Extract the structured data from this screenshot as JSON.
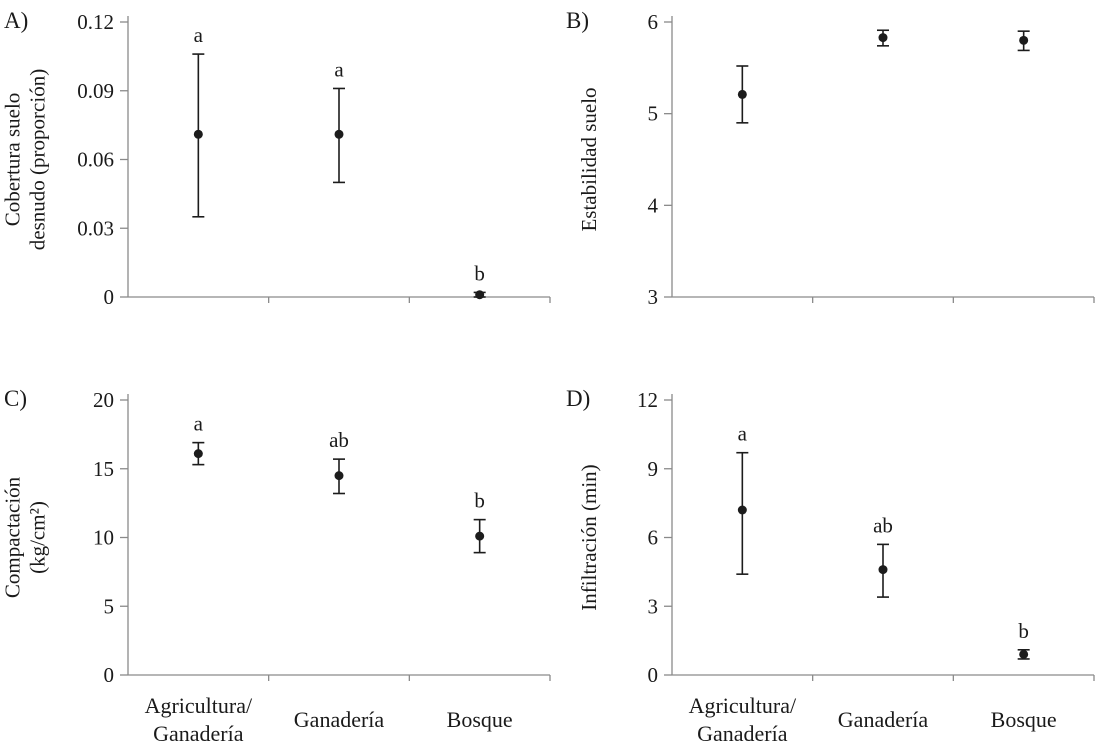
{
  "figure": {
    "background": "#ffffff",
    "point_color": "#1c1c1c",
    "error_bar_color": "#1c1c1c",
    "axis_color": "#8a8a8a",
    "text_color": "#1a1a1a"
  },
  "categories_display": [
    [
      "Agricultura/",
      "Ganadería"
    ],
    [
      "Ganadería"
    ],
    [
      "Bosque"
    ]
  ],
  "chart_data": [
    {
      "type": "scatter",
      "panel_label": "A)",
      "ylabel_lines": [
        "Cobertura suelo",
        "desnudo (proporción)"
      ],
      "ylim": [
        0,
        0.12
      ],
      "yticks": [
        0,
        0.03,
        0.06,
        0.09,
        0.12
      ],
      "ytick_labels": [
        "0",
        "0.03",
        "0.06",
        "0.09",
        "0.12"
      ],
      "categories": [
        "Agricultura/Ganadería",
        "Ganadería",
        "Bosque"
      ],
      "points": [
        {
          "category": "Agricultura/Ganadería",
          "mean": 0.071,
          "lower": 0.035,
          "upper": 0.106,
          "letter": "a"
        },
        {
          "category": "Ganadería",
          "mean": 0.071,
          "lower": 0.05,
          "upper": 0.091,
          "letter": "a"
        },
        {
          "category": "Bosque",
          "mean": 0.001,
          "lower": 0.0,
          "upper": 0.002,
          "letter": "b"
        }
      ]
    },
    {
      "type": "scatter",
      "panel_label": "B)",
      "ylabel_lines": [
        "Estabilidad suelo"
      ],
      "ylim": [
        3,
        6
      ],
      "yticks": [
        3,
        4,
        5,
        6
      ],
      "ytick_labels": [
        "3",
        "4",
        "5",
        "6"
      ],
      "categories": [
        "Agricultura/Ganadería",
        "Ganadería",
        "Bosque"
      ],
      "points": [
        {
          "category": "Agricultura/Ganadería",
          "mean": 5.21,
          "lower": 4.9,
          "upper": 5.52,
          "letter": ""
        },
        {
          "category": "Ganadería",
          "mean": 5.83,
          "lower": 5.74,
          "upper": 5.91,
          "letter": ""
        },
        {
          "category": "Bosque",
          "mean": 5.8,
          "lower": 5.69,
          "upper": 5.9,
          "letter": ""
        }
      ]
    },
    {
      "type": "scatter",
      "panel_label": "C)",
      "ylabel_lines": [
        "Compactación",
        "(kg/cm²)"
      ],
      "ylim": [
        0,
        20
      ],
      "yticks": [
        0,
        5,
        10,
        15,
        20
      ],
      "ytick_labels": [
        "0",
        "5",
        "10",
        "15",
        "20"
      ],
      "categories": [
        "Agricultura/Ganadería",
        "Ganadería",
        "Bosque"
      ],
      "points": [
        {
          "category": "Agricultura/Ganadería",
          "mean": 16.1,
          "lower": 15.3,
          "upper": 16.9,
          "letter": "a"
        },
        {
          "category": "Ganadería",
          "mean": 14.5,
          "lower": 13.2,
          "upper": 15.7,
          "letter": "ab"
        },
        {
          "category": "Bosque",
          "mean": 10.1,
          "lower": 8.9,
          "upper": 11.3,
          "letter": "b"
        }
      ]
    },
    {
      "type": "scatter",
      "panel_label": "D)",
      "ylabel_lines": [
        "Infiltración (min)"
      ],
      "ylim": [
        0,
        12
      ],
      "yticks": [
        0,
        3,
        6,
        9,
        12
      ],
      "ytick_labels": [
        "0",
        "3",
        "6",
        "9",
        "12"
      ],
      "categories": [
        "Agricultura/Ganadería",
        "Ganadería",
        "Bosque"
      ],
      "points": [
        {
          "category": "Agricultura/Ganadería",
          "mean": 7.2,
          "lower": 4.4,
          "upper": 9.7,
          "letter": "a"
        },
        {
          "category": "Ganadería",
          "mean": 4.6,
          "lower": 3.4,
          "upper": 5.7,
          "letter": "ab"
        },
        {
          "category": "Bosque",
          "mean": 0.9,
          "lower": 0.7,
          "upper": 1.1,
          "letter": "b"
        }
      ]
    }
  ]
}
